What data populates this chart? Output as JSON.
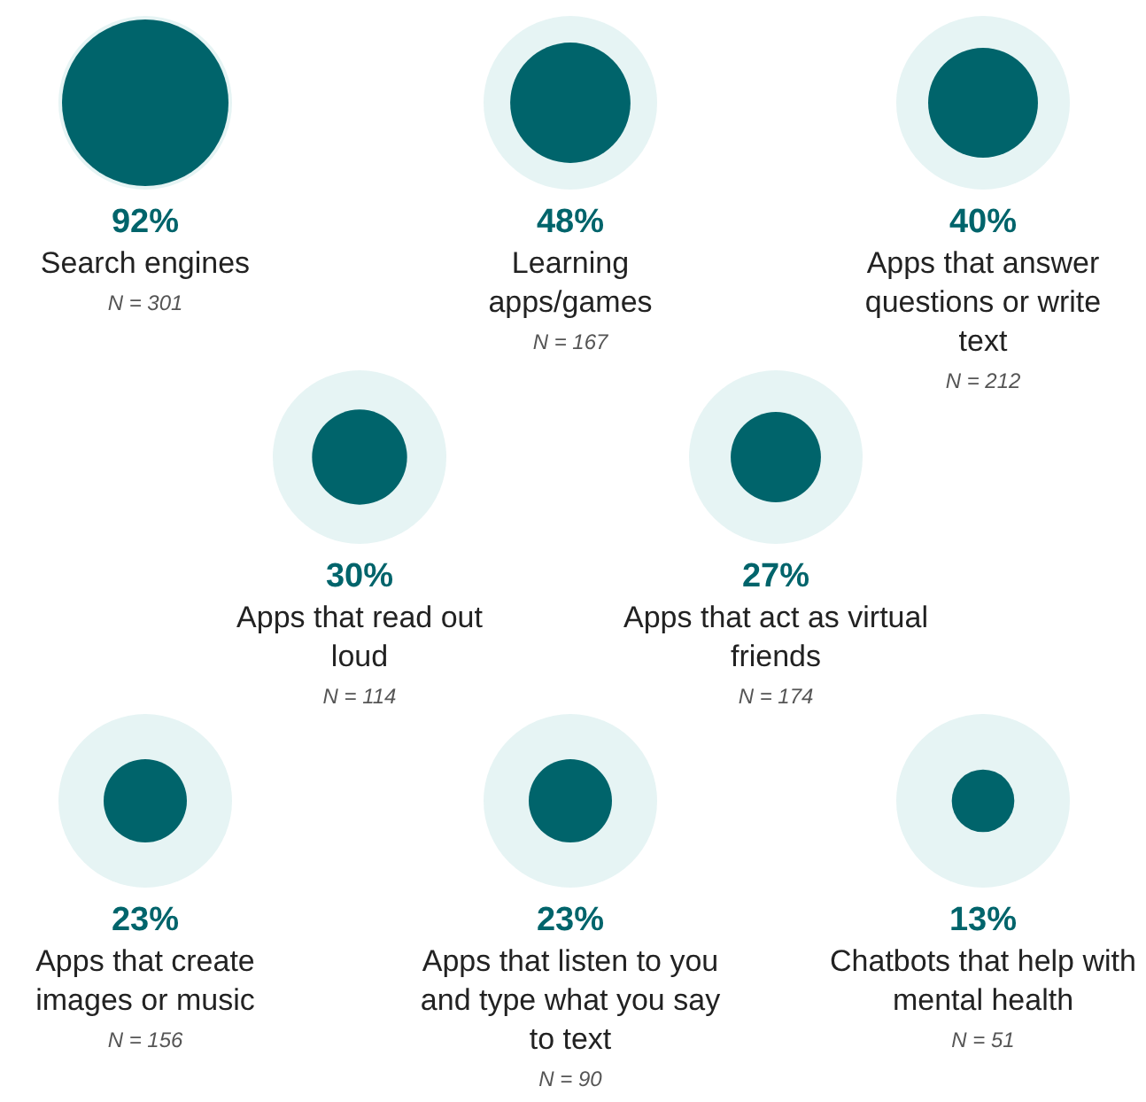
{
  "chart_data": {
    "type": "other",
    "categories": [
      "Search engines",
      "Learning apps/games",
      "Apps that answer questions or write text",
      "Apps that read out loud",
      "Apps that act as virtual friends",
      "Apps that create images or music",
      "Apps that listen to you and type what you say to text",
      "Chatbots that help with mental health"
    ],
    "values": [
      92,
      48,
      40,
      30,
      27,
      23,
      23,
      13
    ],
    "value_labels": [
      "92%",
      "48%",
      "40%",
      "30%",
      "27%",
      "23%",
      "23%",
      "13%"
    ],
    "annotations": [
      "N = 301",
      "N = 167",
      "N = 212",
      "N = 114",
      "N = 174",
      "N = 156",
      "N = 90",
      "N = 51"
    ],
    "color": "#00646b"
  }
}
